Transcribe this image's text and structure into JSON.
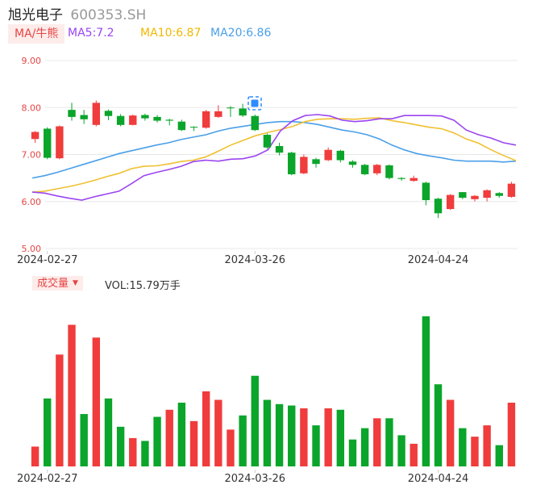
{
  "header": {
    "name": "旭光电子",
    "code": "600353.SH"
  },
  "legend": {
    "ma_tab": "MA/牛熊",
    "ma5": "MA5:7.2",
    "ma10": "MA10:6.87",
    "ma20": "MA20:6.86"
  },
  "volume_panel": {
    "tab": "成交量",
    "value": "VOL:15.79万手"
  },
  "colors": {
    "up": "#f03c3c",
    "down": "#0aa52a",
    "ma5": "#9b45f0",
    "ma10": "#f0c030",
    "ma20": "#4a9fe8",
    "axis_label": "#e64545"
  },
  "chart_data": {
    "type": "candlestick",
    "y_ticks": [
      "9.00",
      "8.00",
      "7.00",
      "6.00",
      "5.00"
    ],
    "ylim": [
      5,
      9
    ],
    "x_tick_labels": [
      "2024-02-27",
      "2024-03-26",
      "2024-04-24"
    ],
    "x_tick_index": [
      1,
      18,
      33
    ],
    "candles": [
      {
        "o": 7.33,
        "c": 7.48,
        "h": 7.5,
        "l": 7.25
      },
      {
        "o": 7.55,
        "c": 6.93,
        "h": 7.58,
        "l": 6.9
      },
      {
        "o": 6.92,
        "c": 7.6,
        "h": 7.62,
        "l": 6.9
      },
      {
        "o": 7.95,
        "c": 7.8,
        "h": 8.1,
        "l": 7.72
      },
      {
        "o": 7.84,
        "c": 7.75,
        "h": 7.95,
        "l": 7.65
      },
      {
        "o": 7.63,
        "c": 8.1,
        "h": 8.15,
        "l": 7.6
      },
      {
        "o": 7.93,
        "c": 7.82,
        "h": 7.96,
        "l": 7.73
      },
      {
        "o": 7.82,
        "c": 7.63,
        "h": 7.86,
        "l": 7.6
      },
      {
        "o": 7.63,
        "c": 7.83,
        "h": 7.85,
        "l": 7.62
      },
      {
        "o": 7.84,
        "c": 7.77,
        "h": 7.87,
        "l": 7.72
      },
      {
        "o": 7.8,
        "c": 7.72,
        "h": 7.84,
        "l": 7.68
      },
      {
        "o": 7.74,
        "c": 7.72,
        "h": 7.76,
        "l": 7.62
      },
      {
        "o": 7.7,
        "c": 7.52,
        "h": 7.74,
        "l": 7.5
      },
      {
        "o": 7.59,
        "c": 7.58,
        "h": 7.6,
        "l": 7.5
      },
      {
        "o": 7.57,
        "c": 7.92,
        "h": 7.95,
        "l": 7.55
      },
      {
        "o": 7.8,
        "c": 7.92,
        "h": 8.05,
        "l": 7.78
      },
      {
        "o": 8.0,
        "c": 7.99,
        "h": 8.03,
        "l": 7.8
      },
      {
        "o": 7.98,
        "c": 7.83,
        "h": 8.08,
        "l": 7.8
      },
      {
        "o": 7.82,
        "c": 7.52,
        "h": 7.85,
        "l": 7.5
      },
      {
        "o": 7.42,
        "c": 7.15,
        "h": 7.45,
        "l": 7.12
      },
      {
        "o": 7.18,
        "c": 7.04,
        "h": 7.25,
        "l": 6.98
      },
      {
        "o": 7.04,
        "c": 6.58,
        "h": 7.06,
        "l": 6.56
      },
      {
        "o": 6.6,
        "c": 6.95,
        "h": 7.0,
        "l": 6.58
      },
      {
        "o": 6.9,
        "c": 6.8,
        "h": 6.93,
        "l": 6.72
      },
      {
        "o": 6.88,
        "c": 7.1,
        "h": 7.15,
        "l": 6.86
      },
      {
        "o": 7.08,
        "c": 6.88,
        "h": 7.1,
        "l": 6.83
      },
      {
        "o": 6.85,
        "c": 6.78,
        "h": 6.88,
        "l": 6.72
      },
      {
        "o": 6.78,
        "c": 6.58,
        "h": 6.8,
        "l": 6.56
      },
      {
        "o": 6.6,
        "c": 6.78,
        "h": 6.8,
        "l": 6.56
      },
      {
        "o": 6.77,
        "c": 6.5,
        "h": 6.79,
        "l": 6.47
      },
      {
        "o": 6.5,
        "c": 6.48,
        "h": 6.52,
        "l": 6.44
      },
      {
        "o": 6.44,
        "c": 6.5,
        "h": 6.55,
        "l": 6.42
      },
      {
        "o": 6.4,
        "c": 6.03,
        "h": 6.42,
        "l": 5.92
      },
      {
        "o": 6.06,
        "c": 5.75,
        "h": 6.08,
        "l": 5.65
      },
      {
        "o": 5.84,
        "c": 6.14,
        "h": 6.16,
        "l": 5.82
      },
      {
        "o": 6.2,
        "c": 6.08,
        "h": 6.2,
        "l": 6.05
      },
      {
        "o": 6.05,
        "c": 6.12,
        "h": 6.14,
        "l": 6.0
      },
      {
        "o": 6.08,
        "c": 6.24,
        "h": 6.26,
        "l": 6.0
      },
      {
        "o": 6.18,
        "c": 6.12,
        "h": 6.2,
        "l": 6.08
      },
      {
        "o": 6.1,
        "c": 6.38,
        "h": 6.42,
        "l": 6.08
      }
    ],
    "volume_max": 100,
    "volume": [
      {
        "v": 14,
        "up": true
      },
      {
        "v": 48,
        "up": false
      },
      {
        "v": 79,
        "up": true
      },
      {
        "v": 100,
        "up": true
      },
      {
        "v": 37,
        "up": false
      },
      {
        "v": 91,
        "up": true
      },
      {
        "v": 48,
        "up": false
      },
      {
        "v": 28,
        "up": false
      },
      {
        "v": 20,
        "up": true
      },
      {
        "v": 18,
        "up": false
      },
      {
        "v": 35,
        "up": false
      },
      {
        "v": 40,
        "up": true
      },
      {
        "v": 45,
        "up": false
      },
      {
        "v": 32,
        "up": true
      },
      {
        "v": 53,
        "up": true
      },
      {
        "v": 47,
        "up": true
      },
      {
        "v": 26,
        "up": true
      },
      {
        "v": 36,
        "up": false
      },
      {
        "v": 64,
        "up": false
      },
      {
        "v": 47,
        "up": false
      },
      {
        "v": 44,
        "up": false
      },
      {
        "v": 43,
        "up": false
      },
      {
        "v": 41,
        "up": true
      },
      {
        "v": 29,
        "up": false
      },
      {
        "v": 41,
        "up": true
      },
      {
        "v": 40,
        "up": false
      },
      {
        "v": 19,
        "up": false
      },
      {
        "v": 27,
        "up": false
      },
      {
        "v": 34,
        "up": true
      },
      {
        "v": 34,
        "up": false
      },
      {
        "v": 22,
        "up": false
      },
      {
        "v": 16,
        "up": true
      },
      {
        "v": 106,
        "up": false
      },
      {
        "v": 58,
        "up": false
      },
      {
        "v": 47,
        "up": true
      },
      {
        "v": 27,
        "up": false
      },
      {
        "v": 21,
        "up": true
      },
      {
        "v": 29,
        "up": true
      },
      {
        "v": 15,
        "up": false
      },
      {
        "v": 45,
        "up": true
      }
    ],
    "ma5": [
      6.2,
      6.18,
      6.12,
      6.07,
      6.03,
      6.1,
      6.16,
      6.22,
      6.38,
      6.55,
      6.62,
      6.68,
      6.75,
      6.85,
      6.88,
      6.86,
      6.9,
      6.91,
      6.97,
      7.1,
      7.5,
      7.72,
      7.83,
      7.85,
      7.82,
      7.73,
      7.7,
      7.72,
      7.76,
      7.76,
      7.83,
      7.83,
      7.83,
      7.82,
      7.73,
      7.52,
      7.42,
      7.35,
      7.25,
      7.2
    ],
    "ma10": [
      6.2,
      6.22,
      6.27,
      6.32,
      6.38,
      6.45,
      6.53,
      6.6,
      6.7,
      6.75,
      6.76,
      6.8,
      6.85,
      6.88,
      6.95,
      7.07,
      7.2,
      7.3,
      7.4,
      7.47,
      7.53,
      7.6,
      7.7,
      7.75,
      7.76,
      7.76,
      7.75,
      7.77,
      7.78,
      7.72,
      7.68,
      7.63,
      7.58,
      7.55,
      7.46,
      7.33,
      7.24,
      7.1,
      6.98,
      6.87
    ],
    "ma20": [
      6.5,
      6.55,
      6.62,
      6.7,
      6.78,
      6.86,
      6.94,
      7.02,
      7.08,
      7.14,
      7.2,
      7.25,
      7.32,
      7.37,
      7.42,
      7.5,
      7.56,
      7.6,
      7.64,
      7.68,
      7.7,
      7.7,
      7.68,
      7.64,
      7.58,
      7.52,
      7.48,
      7.42,
      7.33,
      7.2,
      7.1,
      7.02,
      6.97,
      6.93,
      6.88,
      6.86,
      6.86,
      6.86,
      6.84,
      6.86
    ]
  }
}
